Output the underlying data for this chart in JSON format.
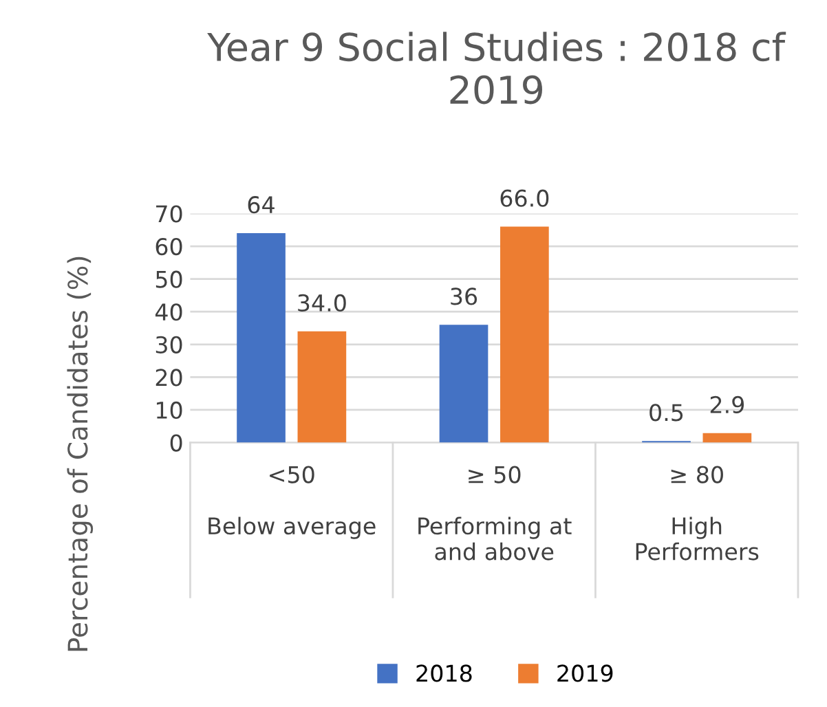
{
  "chart_data": {
    "type": "bar",
    "title": "Year 9 Social Studies : 2018 cf 2019",
    "ylabel": "Percentage of Candidates (%)",
    "categories": [
      "<50\n\nBelow average",
      "≥ 50\n\nPerforming at\nand above",
      "≥ 80\n\nHigh\nPerformers"
    ],
    "series": [
      {
        "name": "2018",
        "color": "#4472c4",
        "values": [
          64,
          36,
          0.5
        ],
        "value_labels": [
          "64",
          "36",
          "0.5"
        ]
      },
      {
        "name": "2019",
        "color": "#ed7d31",
        "values": [
          34.0,
          66.0,
          2.9
        ],
        "value_labels": [
          "34.0",
          "66.0",
          "2.9"
        ]
      }
    ],
    "ylim": [
      0,
      70
    ],
    "yticks": [
      0,
      10,
      20,
      30,
      40,
      50,
      60,
      70
    ],
    "grid": "y",
    "legend": "bottom"
  }
}
